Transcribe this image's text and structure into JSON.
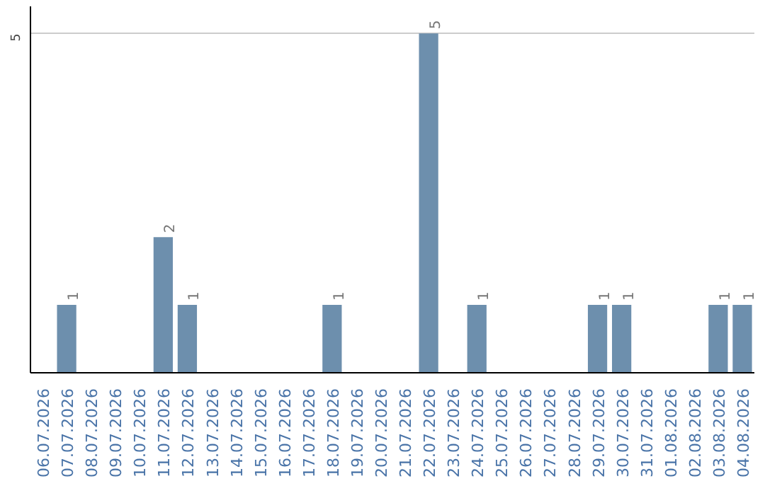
{
  "chart_data": {
    "type": "bar",
    "categories": [
      "06.07.2026",
      "07.07.2026",
      "08.07.2026",
      "09.07.2026",
      "10.07.2026",
      "11.07.2026",
      "12.07.2026",
      "13.07.2026",
      "14.07.2026",
      "15.07.2026",
      "16.07.2026",
      "17.07.2026",
      "18.07.2026",
      "19.07.2026",
      "20.07.2026",
      "21.07.2026",
      "22.07.2026",
      "23.07.2026",
      "24.07.2026",
      "25.07.2026",
      "26.07.2026",
      "27.07.2026",
      "28.07.2026",
      "29.07.2026",
      "30.07.2026",
      "31.07.2026",
      "01.08.2026",
      "02.08.2026",
      "03.08.2026",
      "04.08.2026"
    ],
    "values": [
      0,
      1,
      0,
      0,
      0,
      2,
      1,
      0,
      0,
      0,
      0,
      0,
      1,
      0,
      0,
      0,
      5,
      0,
      1,
      0,
      0,
      0,
      0,
      1,
      1,
      0,
      0,
      0,
      1,
      1
    ],
    "value_labels": [
      null,
      "1",
      null,
      null,
      null,
      "2",
      "1",
      null,
      null,
      null,
      null,
      null,
      "1",
      null,
      null,
      null,
      "5",
      null,
      "1",
      null,
      null,
      null,
      null,
      "1",
      "1",
      null,
      null,
      null,
      "1",
      "1"
    ],
    "color": "#6d8fad",
    "ylim": [
      0,
      5.4
    ],
    "yticks": [
      {
        "value": 0,
        "label": null
      },
      5
    ],
    "grid": "y"
  }
}
